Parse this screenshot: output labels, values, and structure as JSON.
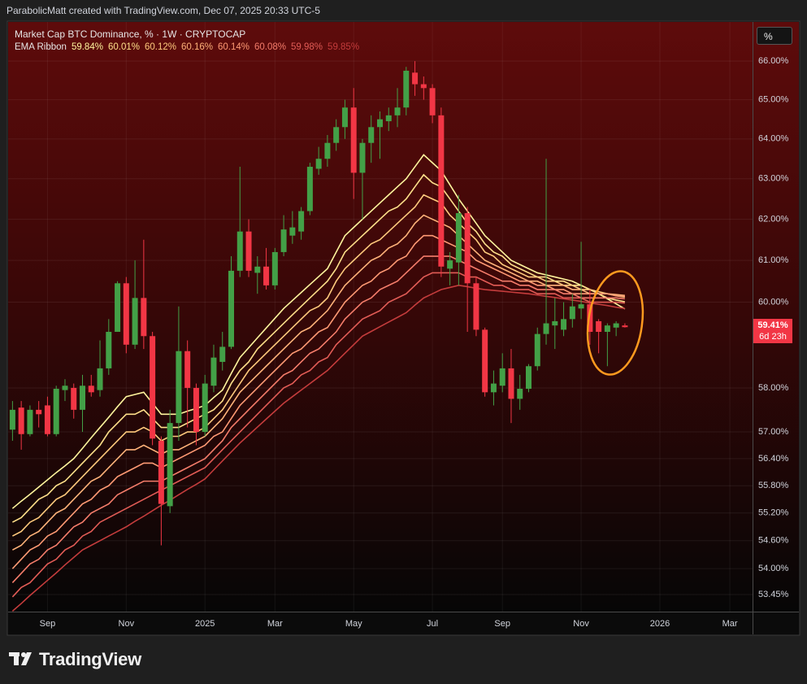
{
  "header": {
    "text": "ParabolicMatt created with TradingView.com, Dec 07, 2025 20:33 UTC-5"
  },
  "footer": {
    "brand": "TradingView"
  },
  "chart_data": {
    "type": "candlestick",
    "title": "Market Cap BTC Dominance, % · 1W · CRYPTOCAP",
    "indicator": "EMA Ribbon",
    "unit_button": "%",
    "last_price_label": "59.41%",
    "countdown": "6d 23h",
    "log_scale": true,
    "grid": true,
    "up_color": "#43a047",
    "down_color": "#f23645",
    "categories": [
      null,
      null,
      null,
      null,
      "Sep",
      null,
      null,
      null,
      null,
      null,
      null,
      null,
      null,
      "Nov",
      null,
      null,
      null,
      null,
      null,
      null,
      null,
      null,
      "2025",
      null,
      null,
      null,
      null,
      null,
      null,
      null,
      "Mar",
      null,
      null,
      null,
      null,
      null,
      null,
      null,
      null,
      "May",
      null,
      null,
      null,
      null,
      null,
      null,
      null,
      null,
      "Jul",
      null,
      null,
      null,
      null,
      null,
      null,
      null,
      "Sep",
      null,
      null,
      null,
      null,
      null,
      null,
      null,
      null,
      "Nov",
      null,
      null,
      null,
      null,
      null,
      null,
      null,
      null,
      "2026",
      null,
      null,
      null,
      null,
      null,
      null,
      null,
      "Mar",
      null,
      null
    ],
    "open": [
      57.05,
      57.55,
      56.95,
      57.5,
      57.6,
      56.95,
      57.95,
      58.0,
      57.5,
      58.05,
      57.95,
      58.45,
      59.3,
      60.45,
      59.0,
      60.1,
      59.2,
      56.8,
      55.35,
      57.2,
      58.85,
      58.0,
      57.0,
      58.05,
      58.6,
      58.95,
      60.75,
      61.7,
      60.7,
      60.85,
      60.4,
      61.2,
      61.6,
      61.7,
      62.2,
      63.25,
      63.5,
      63.9,
      64.3,
      64.8,
      63.15,
      63.9,
      64.3,
      64.45,
      64.6,
      64.8,
      65.7,
      65.4,
      65.3,
      64.6,
      60.8,
      60.95,
      62.15,
      60.45,
      59.35,
      57.9,
      58.05,
      58.45,
      57.75,
      57.98,
      58.5,
      59.25,
      59.45,
      59.35,
      59.6,
      59.85,
      59.95,
      59.55,
      59.3,
      59.4,
      59.45,
      null,
      null,
      null,
      null,
      null,
      null,
      null,
      null,
      null,
      null,
      null,
      null,
      null,
      null
    ],
    "high": [
      57.7,
      57.7,
      57.6,
      57.7,
      57.8,
      58.05,
      58.2,
      58.1,
      58.3,
      58.3,
      59.1,
      59.6,
      60.5,
      60.6,
      61.0,
      61.5,
      59.3,
      56.9,
      57.5,
      59.9,
      59.1,
      58.1,
      58.3,
      59.0,
      59.3,
      61.1,
      63.3,
      62.0,
      61.1,
      61.3,
      61.3,
      62.1,
      62.2,
      62.3,
      63.4,
      63.8,
      64.1,
      64.5,
      65.0,
      65.3,
      64.0,
      64.6,
      64.7,
      64.8,
      65.3,
      65.85,
      66.0,
      65.6,
      65.4,
      64.8,
      61.2,
      62.6,
      62.3,
      60.6,
      59.4,
      58.4,
      58.8,
      58.9,
      58.3,
      58.55,
      59.4,
      63.5,
      60.1,
      60.0,
      60.2,
      61.45,
      60.3,
      59.6,
      59.5,
      59.55,
      59.5,
      null,
      null,
      null,
      null,
      null,
      null,
      null,
      null,
      null,
      null,
      null,
      null,
      null,
      null
    ],
    "low": [
      56.8,
      56.6,
      56.9,
      57.1,
      56.9,
      56.9,
      57.7,
      57.3,
      57.0,
      57.8,
      57.8,
      58.3,
      59.3,
      58.8,
      58.9,
      58.9,
      56.7,
      54.5,
      55.2,
      56.8,
      57.1,
      56.7,
      56.9,
      57.9,
      58.4,
      58.9,
      60.6,
      60.6,
      60.2,
      60.3,
      60.3,
      61.1,
      61.4,
      61.5,
      62.1,
      63.1,
      63.3,
      63.7,
      64.0,
      62.5,
      62.0,
      63.4,
      63.5,
      64.2,
      64.3,
      64.6,
      65.1,
      65.0,
      64.4,
      60.6,
      60.4,
      60.4,
      59.3,
      59.2,
      57.8,
      57.6,
      57.9,
      57.2,
      57.5,
      57.9,
      58.4,
      59.0,
      58.9,
      59.2,
      59.4,
      59.6,
      59.0,
      58.8,
      58.5,
      59.2,
      59.4,
      null,
      null,
      null,
      null,
      null,
      null,
      null,
      null,
      null,
      null,
      null,
      null,
      null,
      null
    ],
    "close": [
      57.5,
      56.95,
      57.5,
      57.4,
      56.95,
      57.98,
      58.05,
      57.5,
      58.05,
      57.9,
      58.45,
      59.3,
      60.45,
      59.0,
      60.1,
      59.2,
      56.85,
      55.4,
      57.2,
      58.85,
      58.0,
      57.0,
      58.1,
      58.7,
      58.95,
      60.75,
      61.7,
      60.75,
      60.85,
      60.4,
      61.2,
      61.75,
      61.8,
      62.2,
      63.3,
      63.5,
      63.9,
      64.3,
      64.8,
      63.15,
      63.9,
      64.3,
      64.5,
      64.6,
      64.8,
      65.75,
      65.4,
      65.3,
      64.6,
      60.85,
      61.0,
      62.15,
      60.45,
      59.35,
      57.9,
      58.1,
      58.45,
      57.75,
      57.98,
      58.5,
      59.25,
      59.5,
      59.55,
      59.6,
      59.9,
      59.95,
      59.3,
      59.3,
      59.45,
      59.5,
      59.41,
      null,
      null,
      null,
      null,
      null,
      null,
      null,
      null,
      null,
      null,
      null,
      null,
      null,
      null
    ],
    "series": [
      {
        "color": "#fff59d",
        "legend_label": "59.84%",
        "values": [
          55.3,
          55.46,
          55.61,
          55.77,
          55.93,
          56.09,
          56.24,
          56.4,
          56.63,
          56.87,
          57.1,
          57.33,
          57.57,
          57.8,
          57.85,
          57.9,
          57.65,
          57.4,
          57.4,
          57.4,
          57.47,
          57.53,
          57.6,
          57.78,
          57.95,
          58.33,
          58.7,
          58.93,
          59.16,
          59.39,
          59.62,
          59.85,
          60.04,
          60.23,
          60.42,
          60.61,
          60.8,
          61.2,
          61.6,
          61.8,
          62.0,
          62.2,
          62.4,
          62.6,
          62.8,
          63.0,
          63.3,
          63.6,
          63.4,
          63.2,
          62.85,
          62.5,
          62.2,
          61.9,
          61.6,
          61.4,
          61.2,
          61.0,
          60.9,
          60.8,
          60.7,
          60.65,
          60.6,
          60.55,
          60.5,
          60.4,
          60.3,
          60.2,
          60.08,
          59.96,
          59.84,
          null,
          null,
          null,
          null,
          null,
          null,
          null,
          null,
          null,
          null,
          null,
          null,
          null,
          null
        ]
      },
      {
        "color": "#ffe08a",
        "legend_label": "60.01%",
        "values": [
          55.0,
          55.1,
          55.3,
          55.5,
          55.6,
          55.8,
          55.9,
          56.1,
          56.3,
          56.5,
          56.7,
          57.0,
          57.2,
          57.4,
          57.4,
          57.5,
          57.3,
          57.1,
          57.1,
          57.1,
          57.2,
          57.3,
          57.4,
          57.5,
          57.7,
          58.1,
          58.4,
          58.6,
          58.9,
          59.1,
          59.3,
          59.5,
          59.7,
          59.9,
          60.1,
          60.3,
          60.5,
          60.8,
          61.2,
          61.4,
          61.6,
          61.8,
          62.0,
          62.2,
          62.3,
          62.5,
          62.8,
          63.1,
          62.9,
          62.8,
          62.5,
          62.2,
          61.9,
          61.7,
          61.4,
          61.2,
          61.1,
          60.9,
          60.8,
          60.7,
          60.6,
          60.6,
          60.5,
          60.5,
          60.4,
          60.4,
          60.3,
          60.2,
          60.1,
          60.05,
          60.01,
          null,
          null,
          null,
          null,
          null,
          null,
          null,
          null,
          null,
          null,
          null,
          null,
          null,
          null
        ]
      },
      {
        "color": "#ffca7d",
        "legend_label": "60.12%",
        "values": [
          54.7,
          54.8,
          55.0,
          55.1,
          55.3,
          55.5,
          55.6,
          55.8,
          56.0,
          56.2,
          56.4,
          56.6,
          56.8,
          57.0,
          57.0,
          57.1,
          57.0,
          56.8,
          56.9,
          56.9,
          57.0,
          57.0,
          57.1,
          57.3,
          57.5,
          57.8,
          58.1,
          58.4,
          58.6,
          58.8,
          59.0,
          59.2,
          59.4,
          59.6,
          59.8,
          59.9,
          60.1,
          60.5,
          60.8,
          61.0,
          61.2,
          61.4,
          61.5,
          61.7,
          61.9,
          62.1,
          62.3,
          62.6,
          62.5,
          62.4,
          62.1,
          61.9,
          61.7,
          61.5,
          61.2,
          61.1,
          60.9,
          60.8,
          60.7,
          60.6,
          60.6,
          60.5,
          60.5,
          60.4,
          60.4,
          60.3,
          60.3,
          60.25,
          60.2,
          60.15,
          60.12,
          null,
          null,
          null,
          null,
          null,
          null,
          null,
          null,
          null,
          null,
          null,
          null,
          null,
          null
        ]
      },
      {
        "color": "#ffb37a",
        "legend_label": "60.16%",
        "values": [
          54.4,
          54.5,
          54.7,
          54.8,
          55.0,
          55.2,
          55.3,
          55.5,
          55.7,
          55.9,
          56.0,
          56.2,
          56.4,
          56.6,
          56.6,
          56.7,
          56.6,
          56.5,
          56.6,
          56.6,
          56.7,
          56.8,
          56.9,
          57.1,
          57.3,
          57.6,
          57.9,
          58.1,
          58.3,
          58.5,
          58.7,
          58.9,
          59.1,
          59.3,
          59.4,
          59.6,
          59.8,
          60.1,
          60.4,
          60.6,
          60.8,
          61.0,
          61.1,
          61.3,
          61.4,
          61.6,
          61.9,
          62.1,
          62.0,
          61.9,
          61.8,
          61.6,
          61.4,
          61.2,
          61.0,
          60.9,
          60.8,
          60.7,
          60.6,
          60.5,
          60.5,
          60.4,
          60.4,
          60.4,
          60.3,
          60.3,
          60.2,
          60.2,
          60.2,
          60.18,
          60.16,
          null,
          null,
          null,
          null,
          null,
          null,
          null,
          null,
          null,
          null,
          null,
          null,
          null,
          null
        ]
      },
      {
        "color": "#ff9a74",
        "legend_label": "60.14%",
        "values": [
          54.0,
          54.2,
          54.4,
          54.5,
          54.7,
          54.8,
          55.0,
          55.2,
          55.4,
          55.5,
          55.7,
          55.8,
          56.0,
          56.1,
          56.2,
          56.3,
          56.3,
          56.2,
          56.3,
          56.4,
          56.5,
          56.6,
          56.7,
          56.9,
          57.0,
          57.3,
          57.6,
          57.8,
          58.0,
          58.2,
          58.4,
          58.6,
          58.8,
          58.9,
          59.1,
          59.3,
          59.4,
          59.7,
          60.0,
          60.2,
          60.4,
          60.5,
          60.7,
          60.8,
          61.0,
          61.1,
          61.4,
          61.6,
          61.6,
          61.5,
          61.4,
          61.3,
          61.2,
          61.0,
          60.9,
          60.8,
          60.7,
          60.6,
          60.5,
          60.5,
          60.4,
          60.4,
          60.3,
          60.3,
          60.2,
          60.2,
          60.2,
          60.2,
          60.2,
          60.15,
          60.14,
          null,
          null,
          null,
          null,
          null,
          null,
          null,
          null,
          null,
          null,
          null,
          null,
          null,
          null
        ]
      },
      {
        "color": "#f57d6b",
        "legend_label": "60.08%",
        "values": [
          53.7,
          53.9,
          54.1,
          54.2,
          54.4,
          54.5,
          54.7,
          54.9,
          55.0,
          55.2,
          55.3,
          55.4,
          55.6,
          55.7,
          55.8,
          55.9,
          55.9,
          55.9,
          56.0,
          56.1,
          56.2,
          56.3,
          56.4,
          56.6,
          56.8,
          57.1,
          57.3,
          57.5,
          57.7,
          57.9,
          58.1,
          58.3,
          58.4,
          58.6,
          58.8,
          58.9,
          59.1,
          59.3,
          59.6,
          59.8,
          60.0,
          60.1,
          60.3,
          60.4,
          60.5,
          60.7,
          60.9,
          61.1,
          61.1,
          61.1,
          61.1,
          61.0,
          60.9,
          60.8,
          60.7,
          60.6,
          60.5,
          60.5,
          60.4,
          60.4,
          60.3,
          60.3,
          60.3,
          60.2,
          60.2,
          60.1,
          60.1,
          60.1,
          60.1,
          60.1,
          60.08,
          null,
          null,
          null,
          null,
          null,
          null,
          null,
          null,
          null,
          null,
          null,
          null,
          null,
          null
        ]
      },
      {
        "color": "#e25c56",
        "legend_label": "59.98%",
        "values": [
          53.4,
          53.6,
          53.7,
          53.9,
          54.1,
          54.2,
          54.4,
          54.5,
          54.7,
          54.8,
          55.0,
          55.1,
          55.2,
          55.3,
          55.4,
          55.5,
          55.6,
          55.7,
          55.8,
          55.9,
          56.0,
          56.1,
          56.2,
          56.4,
          56.6,
          56.8,
          57.0,
          57.2,
          57.4,
          57.6,
          57.8,
          58.0,
          58.1,
          58.3,
          58.4,
          58.6,
          58.7,
          59.0,
          59.2,
          59.4,
          59.6,
          59.7,
          59.8,
          60.0,
          60.1,
          60.2,
          60.4,
          60.6,
          60.7,
          60.7,
          60.7,
          60.7,
          60.6,
          60.6,
          60.5,
          60.4,
          60.4,
          60.3,
          60.3,
          60.3,
          60.2,
          60.2,
          60.2,
          60.1,
          60.1,
          60.1,
          60.0,
          60.0,
          60.0,
          60.0,
          59.98,
          null,
          null,
          null,
          null,
          null,
          null,
          null,
          null,
          null,
          null,
          null,
          null,
          null,
          null
        ]
      },
      {
        "color": "#c43c3c",
        "legend_label": "59.85%",
        "values": [
          53.1,
          53.26,
          53.43,
          53.59,
          53.75,
          53.91,
          54.08,
          54.24,
          54.4,
          54.5,
          54.6,
          54.7,
          54.8,
          54.9,
          55.02,
          55.13,
          55.25,
          55.37,
          55.48,
          55.6,
          55.72,
          55.83,
          55.95,
          56.15,
          56.35,
          56.55,
          56.75,
          56.93,
          57.11,
          57.29,
          57.47,
          57.65,
          57.8,
          57.95,
          58.1,
          58.25,
          58.4,
          58.6,
          58.8,
          59.0,
          59.2,
          59.31,
          59.42,
          59.53,
          59.64,
          59.75,
          59.93,
          60.1,
          60.2,
          60.3,
          60.35,
          60.4,
          60.37,
          60.33,
          60.3,
          60.28,
          60.26,
          60.24,
          60.22,
          60.2,
          60.17,
          60.14,
          60.11,
          60.08,
          60.05,
          60.02,
          59.98,
          59.95,
          59.92,
          59.88,
          59.85,
          null,
          null,
          null,
          null,
          null,
          null,
          null,
          null,
          null,
          null,
          null,
          null,
          null,
          null
        ]
      }
    ],
    "ylim": [
      53.09,
      67.03
    ],
    "yticks": [
      {
        "value": 66,
        "label": "66.00%"
      },
      {
        "value": 65,
        "label": "65.00%"
      },
      {
        "value": 64,
        "label": "64.00%"
      },
      {
        "value": 63,
        "label": "63.00%"
      },
      {
        "value": 62,
        "label": "62.00%"
      },
      {
        "value": 61,
        "label": "61.00%"
      },
      {
        "value": 60,
        "label": "60.00%"
      },
      {
        "value": 58,
        "label": "58.00%"
      },
      {
        "value": 57,
        "label": "57.00%"
      },
      {
        "value": 56.4,
        "label": "56.40%"
      },
      {
        "value": 55.8,
        "label": "55.80%"
      },
      {
        "value": 55.2,
        "label": "55.20%"
      },
      {
        "value": 54.6,
        "label": "54.60%"
      },
      {
        "value": 54,
        "label": "54.00%"
      },
      {
        "value": 53.45,
        "label": "53.45%"
      }
    ]
  }
}
